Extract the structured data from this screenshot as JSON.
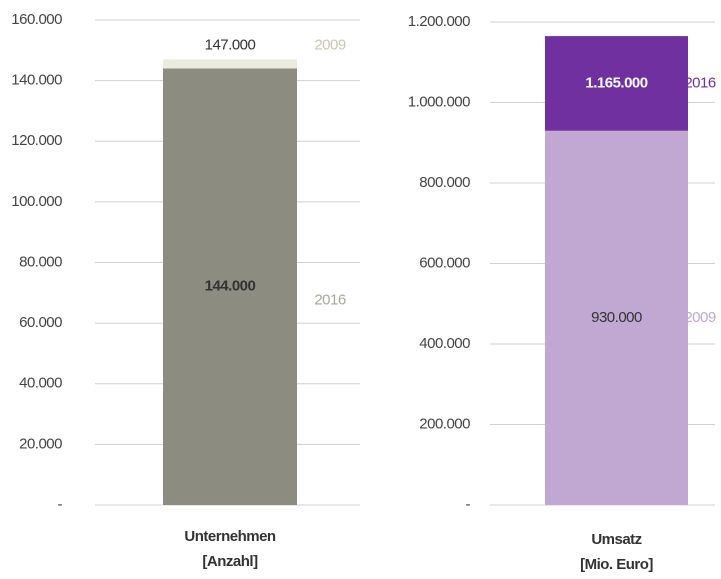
{
  "chart_data": [
    {
      "type": "bar",
      "categories": [
        "Unternehmen\n[Anzahl]"
      ],
      "series": [
        {
          "name": "2009",
          "color": "#ecebe0",
          "label_color": "#c9c7b0",
          "values": [
            147000
          ],
          "value_labels": [
            "147.000"
          ]
        },
        {
          "name": "2016",
          "color": "#8c8c80",
          "label_color": "#a8a79a",
          "values": [
            144000
          ],
          "value_labels": [
            "144.000"
          ]
        }
      ],
      "ylim": [
        0,
        160000
      ],
      "yticks": [
        {
          "value": 0,
          "label": "-"
        },
        {
          "value": 20000,
          "label": "20.000"
        },
        {
          "value": 40000,
          "label": "40.000"
        },
        {
          "value": 60000,
          "label": "60.000"
        },
        {
          "value": 80000,
          "label": "80.000"
        },
        {
          "value": 100000,
          "label": "100.000"
        },
        {
          "value": 120000,
          "label": "120.000"
        },
        {
          "value": 140000,
          "label": "140.000"
        },
        {
          "value": 160000,
          "label": "160.000"
        }
      ],
      "grid": true
    },
    {
      "type": "bar",
      "categories": [
        "Umsatz\n[Mio. Euro]"
      ],
      "series": [
        {
          "name": "2009",
          "color": "#c0a8d2",
          "label_color": "#c0a8d2",
          "values": [
            930000
          ],
          "value_labels": [
            "930.000"
          ]
        },
        {
          "name": "2016",
          "color": "#7030a0",
          "label_color": "#7030a0",
          "values": [
            1165000
          ],
          "value_labels": [
            "1.165.000"
          ]
        }
      ],
      "ylim": [
        0,
        1200000
      ],
      "yticks": [
        {
          "value": 0,
          "label": "-"
        },
        {
          "value": 200000,
          "label": "200.000"
        },
        {
          "value": 400000,
          "label": "400.000"
        },
        {
          "value": 600000,
          "label": "600.000"
        },
        {
          "value": 800000,
          "label": "800.000"
        },
        {
          "value": 1000000,
          "label": "1.000.000"
        },
        {
          "value": 1200000,
          "label": "1.200.000"
        }
      ],
      "grid": true
    }
  ]
}
